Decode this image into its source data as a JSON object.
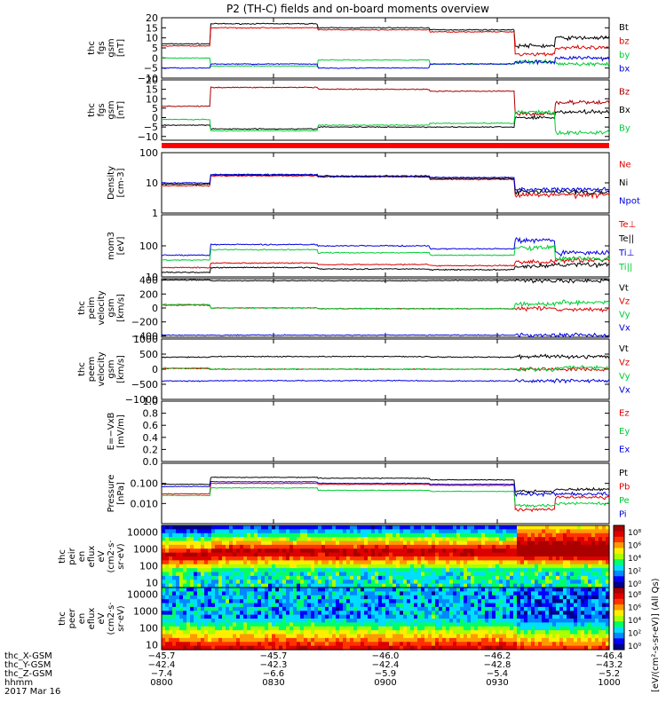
{
  "title": "P2 (TH-C) fields and on-board moments overview",
  "colors": {
    "black": "#000000",
    "red": "#dd0000",
    "green": "#00cc33",
    "blue": "#0000dd",
    "darkred": "#aa0000",
    "axis": "#000000"
  },
  "chart_data": [
    {
      "type": "line",
      "ylabel": [
        "thc",
        "fgs",
        "gsm",
        "[nT]"
      ],
      "ylim": [
        -10,
        20
      ],
      "yticks": [
        "20",
        "15",
        "10",
        "5",
        "0",
        "−5",
        "−10"
      ],
      "yticks_values": [
        20,
        15,
        10,
        5,
        0,
        -5,
        -10
      ],
      "series": [
        {
          "name": "Bt",
          "color": "black",
          "levels": [
            7,
            17,
            15,
            14,
            6,
            10
          ]
        },
        {
          "name": "bz",
          "color": "red",
          "levels": [
            6,
            15,
            14,
            13,
            2,
            5
          ]
        },
        {
          "name": "by",
          "color": "green",
          "levels": [
            0,
            -4,
            -1,
            -3,
            -2,
            -3
          ]
        },
        {
          "name": "bx",
          "color": "blue",
          "levels": [
            -5,
            -3,
            -5,
            -3,
            -2,
            0
          ]
        }
      ]
    },
    {
      "type": "line",
      "ylabel": [
        "thc",
        "fgs",
        "gsm",
        "[nT]"
      ],
      "ylim": [
        -12,
        20
      ],
      "yticks": [
        "20",
        "15",
        "10",
        "5",
        "0",
        "−5",
        "−10"
      ],
      "yticks_values": [
        20,
        15,
        10,
        5,
        0,
        -5,
        -10
      ],
      "series": [
        {
          "name": "Bz",
          "color": "darkred",
          "levels": [
            6,
            16,
            15,
            14,
            2,
            8
          ]
        },
        {
          "name": "Bx",
          "color": "black",
          "levels": [
            -4,
            -6,
            -5,
            -5,
            0,
            3
          ]
        },
        {
          "name": "By",
          "color": "green",
          "levels": [
            -1,
            -7,
            -4,
            -3,
            3,
            -8
          ]
        }
      ]
    },
    {
      "type": "line",
      "ylabel": [
        "Density",
        "[cm-3]"
      ],
      "log": true,
      "ylim": [
        1,
        100
      ],
      "yticks": [
        "100",
        "10",
        "1"
      ],
      "yticks_values": [
        100,
        10,
        1
      ],
      "series": [
        {
          "name": "Ne",
          "color": "red",
          "levels": [
            8,
            17,
            16,
            13,
            4,
            4
          ]
        },
        {
          "name": "Ni",
          "color": "black",
          "levels": [
            9,
            18,
            16,
            14,
            5,
            5
          ]
        },
        {
          "name": "Npot",
          "color": "blue",
          "levels": [
            10,
            19,
            17,
            15,
            6,
            6
          ]
        }
      ]
    },
    {
      "type": "line",
      "ylabel": [
        "mom3",
        "[eV]"
      ],
      "log": true,
      "ylim": [
        10,
        1000
      ],
      "yticks": [
        "100",
        "10"
      ],
      "yticks_values": [
        100,
        10
      ],
      "series": [
        {
          "name": "Te⊥",
          "color": "red",
          "levels": [
            20,
            28,
            25,
            23,
            30,
            35
          ]
        },
        {
          "name": "Te||",
          "color": "black",
          "levels": [
            14,
            20,
            18,
            17,
            22,
            25
          ]
        },
        {
          "name": "Ti⊥",
          "color": "blue",
          "levels": [
            50,
            110,
            100,
            80,
            150,
            60
          ]
        },
        {
          "name": "Ti||",
          "color": "green",
          "levels": [
            35,
            75,
            60,
            50,
            90,
            40
          ]
        }
      ]
    },
    {
      "type": "line",
      "ylabel": [
        "thc",
        "peim",
        "velocity",
        "gsm",
        "[km/s]"
      ],
      "ylim": [
        -420,
        420
      ],
      "yticks": [
        "400",
        "200",
        "0",
        "−200",
        "−400"
      ],
      "yticks_values": [
        400,
        200,
        0,
        -200,
        -400
      ],
      "series": [
        {
          "name": "Vt",
          "color": "black",
          "levels": [
            400,
            390,
            390,
            395,
            390,
            390
          ]
        },
        {
          "name": "Vz",
          "color": "red",
          "levels": [
            40,
            0,
            -10,
            -10,
            -10,
            -20
          ]
        },
        {
          "name": "Vy",
          "color": "green",
          "levels": [
            50,
            0,
            -10,
            -10,
            60,
            80
          ]
        },
        {
          "name": "Vx",
          "color": "blue",
          "levels": [
            -390,
            -390,
            -390,
            -390,
            -390,
            -390
          ]
        }
      ]
    },
    {
      "type": "line",
      "ylabel": [
        "thc",
        "peem",
        "velocity",
        "gsm",
        "[km/s]"
      ],
      "ylim": [
        -1000,
        1000
      ],
      "yticks": [
        "1000",
        "500",
        "0",
        "−500",
        "−1000"
      ],
      "yticks_values": [
        1000,
        500,
        0,
        -500,
        -1000
      ],
      "series": [
        {
          "name": "Vt",
          "color": "black",
          "levels": [
            400,
            420,
            420,
            400,
            420,
            420
          ]
        },
        {
          "name": "Vz",
          "color": "red",
          "levels": [
            20,
            0,
            0,
            0,
            0,
            0
          ]
        },
        {
          "name": "Vy",
          "color": "green",
          "levels": [
            40,
            0,
            0,
            0,
            0,
            50
          ]
        },
        {
          "name": "Vx",
          "color": "blue",
          "levels": [
            -390,
            -380,
            -380,
            -390,
            -380,
            -380
          ]
        }
      ]
    },
    {
      "type": "line",
      "ylabel": [
        "E=−VxB",
        "[mV/m]"
      ],
      "ylim": [
        0,
        1
      ],
      "yticks": [
        "1.0",
        "0.8",
        "0.6",
        "0.4",
        "0.2",
        "0.0"
      ],
      "yticks_values": [
        1,
        0.8,
        0.6,
        0.4,
        0.2,
        0
      ],
      "series": [
        {
          "name": "Ez",
          "color": "red",
          "levels": []
        },
        {
          "name": "Ey",
          "color": "green",
          "levels": []
        },
        {
          "name": "Ex",
          "color": "blue",
          "levels": []
        }
      ]
    },
    {
      "type": "line",
      "ylabel": [
        "Pressure",
        "[nPa]"
      ],
      "log": true,
      "ylim": [
        0.001,
        1
      ],
      "yticks": [
        "0.100",
        "0.010"
      ],
      "yticks_values": [
        0.1,
        0.01
      ],
      "series": [
        {
          "name": "Pt",
          "color": "black",
          "levels": [
            0.09,
            0.2,
            0.18,
            0.15,
            0.04,
            0.05
          ]
        },
        {
          "name": "Pb",
          "color": "red",
          "levels": [
            0.03,
            0.1,
            0.09,
            0.08,
            0.005,
            0.02
          ]
        },
        {
          "name": "Pe",
          "color": "green",
          "levels": [
            0.025,
            0.06,
            0.045,
            0.04,
            0.008,
            0.01
          ]
        },
        {
          "name": "Pi",
          "color": "blue",
          "levels": [
            0.07,
            0.12,
            0.1,
            0.09,
            0.03,
            0.03
          ]
        }
      ]
    },
    {
      "type": "heatmap",
      "ylabel": [
        "thc",
        "peir",
        "en",
        "eflux",
        "eV",
        "(cm2·s·",
        "sr·eV)"
      ],
      "log": true,
      "ylim": [
        5,
        25000
      ],
      "yticks": [
        "10000",
        "1000",
        "100",
        "10"
      ],
      "yticks_values": [
        10000,
        1000,
        100,
        10
      ]
    },
    {
      "type": "heatmap",
      "ylabel": [
        "thc",
        "peer",
        "en",
        "eflux",
        "eV",
        "(cm2·s·",
        "sr·eV)"
      ],
      "log": true,
      "ylim": [
        5,
        25000
      ],
      "yticks": [
        "10000",
        "1000",
        "100",
        "10"
      ],
      "yticks_values": [
        10000,
        1000,
        100,
        10
      ]
    }
  ],
  "colorbar": {
    "label": "[eV/(cm²-s-sr-eV)] (All Qs)",
    "ticks": [
      "10⁸",
      "10⁶",
      "10⁴",
      "10²",
      "10⁰"
    ]
  },
  "colorbar2": {
    "ticks": [
      "10⁸",
      "10⁶",
      "10⁴",
      "10²",
      "10⁰"
    ]
  },
  "time_axis": {
    "row_labels": [
      "thc_X-GSM",
      "thc_Y-GSM",
      "thc_Z-GSM",
      "hhmm",
      "2017 Mar 16"
    ],
    "ticks": [
      {
        "x": "−45.7",
        "y": "−42.4",
        "z": "−7.4",
        "t": "0800"
      },
      {
        "x": "−45.7",
        "y": "−42.3",
        "z": "−6.6",
        "t": "0830"
      },
      {
        "x": "−46.0",
        "y": "−42.4",
        "z": "−5.9",
        "t": "0900"
      },
      {
        "x": "−46.2",
        "y": "−42.8",
        "z": "−5.4",
        "t": "0930"
      },
      {
        "x": "−46.4",
        "y": "−43.2",
        "z": "−5.2",
        "t": "1000"
      }
    ]
  }
}
